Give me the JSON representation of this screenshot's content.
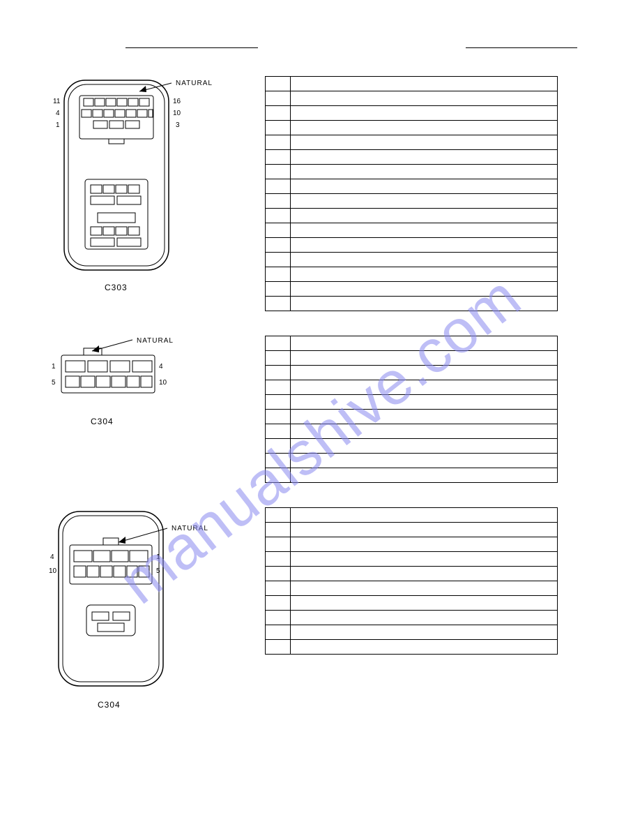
{
  "page_bg": "#ffffff",
  "table_border": "#000000",
  "watermark_text": "manualshive.com",
  "watermark_color": "#8a8af0",
  "diagram1": {
    "label": "C303",
    "color_label": "NATURAL",
    "pins_left": [
      "11",
      "4",
      "1"
    ],
    "pins_right": [
      "16",
      "10",
      "3"
    ],
    "table_rows": 16
  },
  "diagram2": {
    "label": "C304",
    "color_label": "NATURAL",
    "pins_left": [
      "1",
      "5"
    ],
    "pins_right": [
      "4",
      "10"
    ],
    "table_rows": 10
  },
  "diagram3": {
    "label": "C304",
    "color_label": "NATURAL",
    "pins_left": [
      "4",
      "10"
    ],
    "pins_right": [
      "1",
      "5"
    ],
    "table_rows": 10
  }
}
